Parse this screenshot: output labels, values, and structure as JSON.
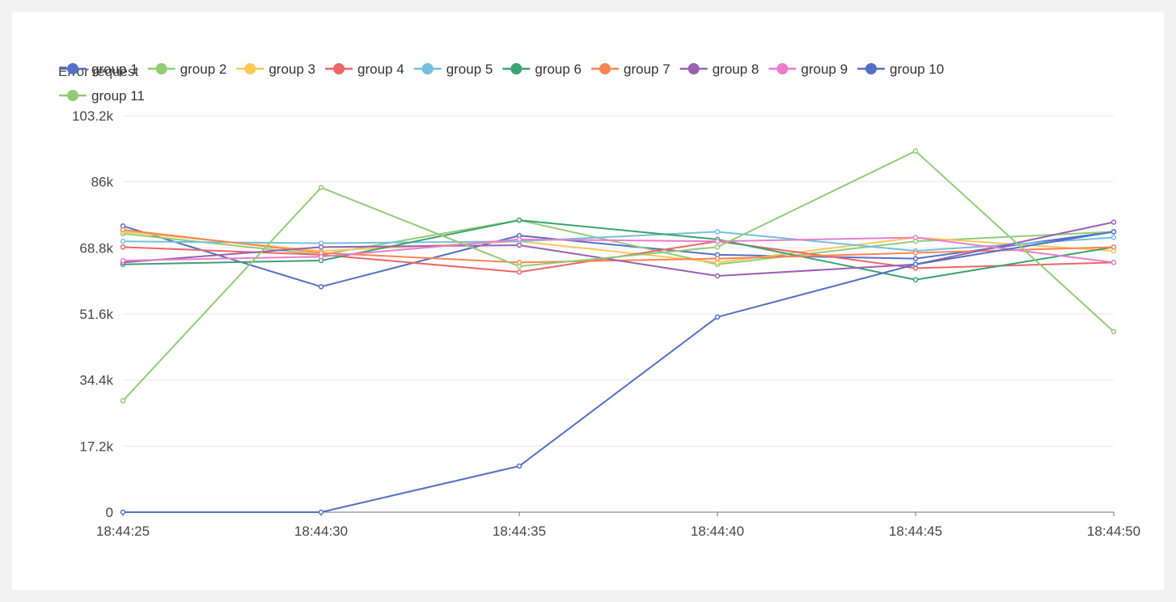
{
  "chart_data": {
    "type": "line",
    "title": "Error request",
    "xlabel": "",
    "ylabel": "",
    "ylim": [
      0,
      103200
    ],
    "yticks": [
      0,
      17200,
      34400,
      51600,
      68800,
      86000,
      103200
    ],
    "ytick_labels": [
      "0",
      "17.2k",
      "34.4k",
      "51.6k",
      "68.8k",
      "86k",
      "103.2k"
    ],
    "x": [
      "18:44:25",
      "18:44:30",
      "18:44:35",
      "18:44:40",
      "18:44:45",
      "18:44:50"
    ],
    "grid": true,
    "legend_position": "top-left",
    "series": [
      {
        "name": "group 1",
        "color": "#5470c6",
        "values": [
          74500,
          58700,
          72000,
          67000,
          66000,
          73000
        ]
      },
      {
        "name": "group 2",
        "color": "#91cc75",
        "values": [
          72500,
          67000,
          76000,
          64500,
          70500,
          73000
        ]
      },
      {
        "name": "group 3",
        "color": "#fac858",
        "values": [
          73000,
          68000,
          70500,
          65000,
          71500,
          68000
        ]
      },
      {
        "name": "group 4",
        "color": "#ee6666",
        "values": [
          69000,
          67000,
          62500,
          70500,
          63500,
          65000
        ]
      },
      {
        "name": "group 5",
        "color": "#73c0de",
        "values": [
          70500,
          70000,
          70500,
          73000,
          68000,
          71500
        ]
      },
      {
        "name": "group 6",
        "color": "#3ba272",
        "values": [
          64500,
          65500,
          76000,
          71000,
          60500,
          69000
        ]
      },
      {
        "name": "group 7",
        "color": "#fc8452",
        "values": [
          73500,
          67500,
          65000,
          66000,
          67500,
          69000
        ]
      },
      {
        "name": "group 8",
        "color": "#9a60b4",
        "values": [
          65000,
          69000,
          69500,
          61500,
          64500,
          75500
        ]
      },
      {
        "name": "group 9",
        "color": "#ea7ccc",
        "values": [
          65500,
          66500,
          71000,
          70500,
          71500,
          65000
        ]
      },
      {
        "name": "group 10",
        "color": "#5470c6",
        "values": [
          0,
          0,
          12000,
          50800,
          64500,
          73000
        ]
      },
      {
        "name": "group 11",
        "color": "#91cc75",
        "values": [
          29000,
          84500,
          64000,
          69000,
          94000,
          47000
        ]
      }
    ]
  }
}
